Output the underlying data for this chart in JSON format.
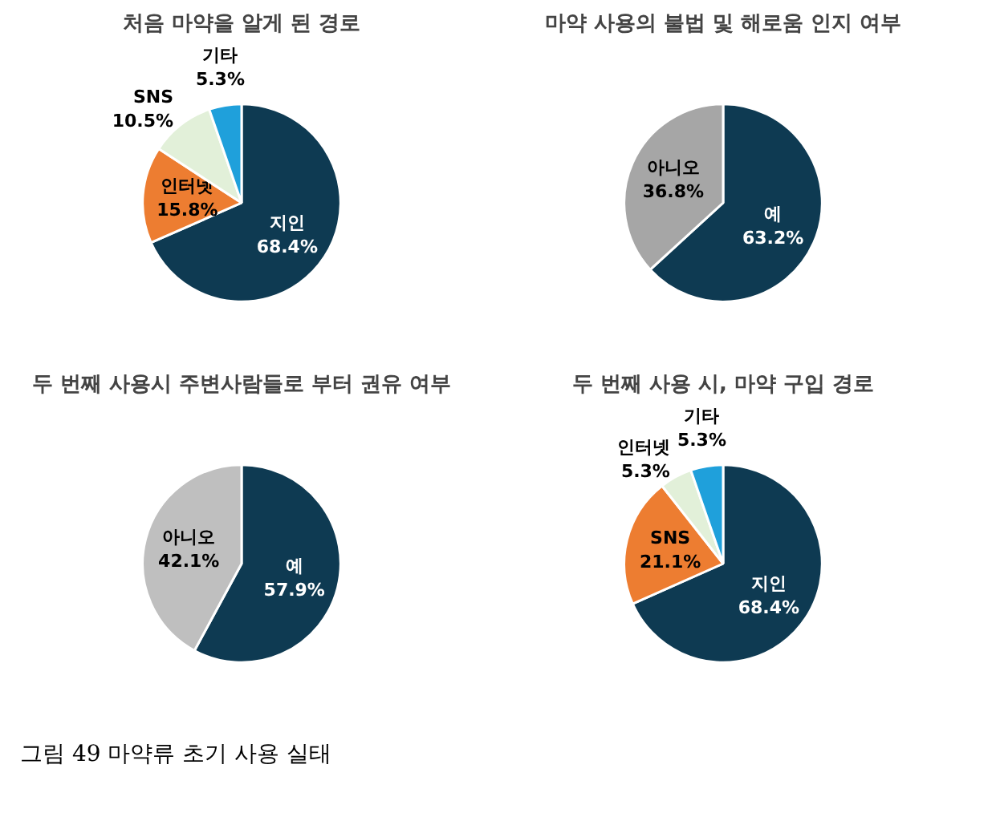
{
  "chart_data": [
    {
      "type": "pie",
      "title": "처음 마약을 알게 된 경로",
      "categories": [
        "지인",
        "인터넷",
        "SNS",
        "기타"
      ],
      "values": [
        68.4,
        15.8,
        10.5,
        5.3
      ],
      "colors": [
        "#0e3a52",
        "#ed7d31",
        "#e2f0d9",
        "#1fa0db"
      ],
      "value_labels": [
        "68.4%",
        "15.8%",
        "10.5%",
        "5.3%"
      ]
    },
    {
      "type": "pie",
      "title": "마약 사용의 불법 및 해로움 인지 여부",
      "categories": [
        "예",
        "아니오"
      ],
      "values": [
        63.2,
        36.8
      ],
      "colors": [
        "#0e3a52",
        "#a6a6a6"
      ],
      "value_labels": [
        "63.2%",
        "36.8%"
      ]
    },
    {
      "type": "pie",
      "title": "두 번째 사용시 주변사람들로 부터 권유 여부",
      "categories": [
        "예",
        "아니오"
      ],
      "values": [
        57.9,
        42.1
      ],
      "colors": [
        "#0e3a52",
        "#bfbfbf"
      ],
      "value_labels": [
        "57.9%",
        "42.1%"
      ]
    },
    {
      "type": "pie",
      "title": "두 번째 사용 시, 마약 구입 경로",
      "categories": [
        "지인",
        "SNS",
        "인터넷",
        "기타"
      ],
      "values": [
        68.4,
        21.1,
        5.3,
        5.3
      ],
      "colors": [
        "#0e3a52",
        "#ed7d31",
        "#e2f0d9",
        "#1fa0db"
      ],
      "value_labels": [
        "68.4%",
        "21.1%",
        "5.3%",
        "5.3%"
      ],
      "annotations": [
        "그림 49 마약류 초기 사용 실태"
      ]
    }
  ]
}
